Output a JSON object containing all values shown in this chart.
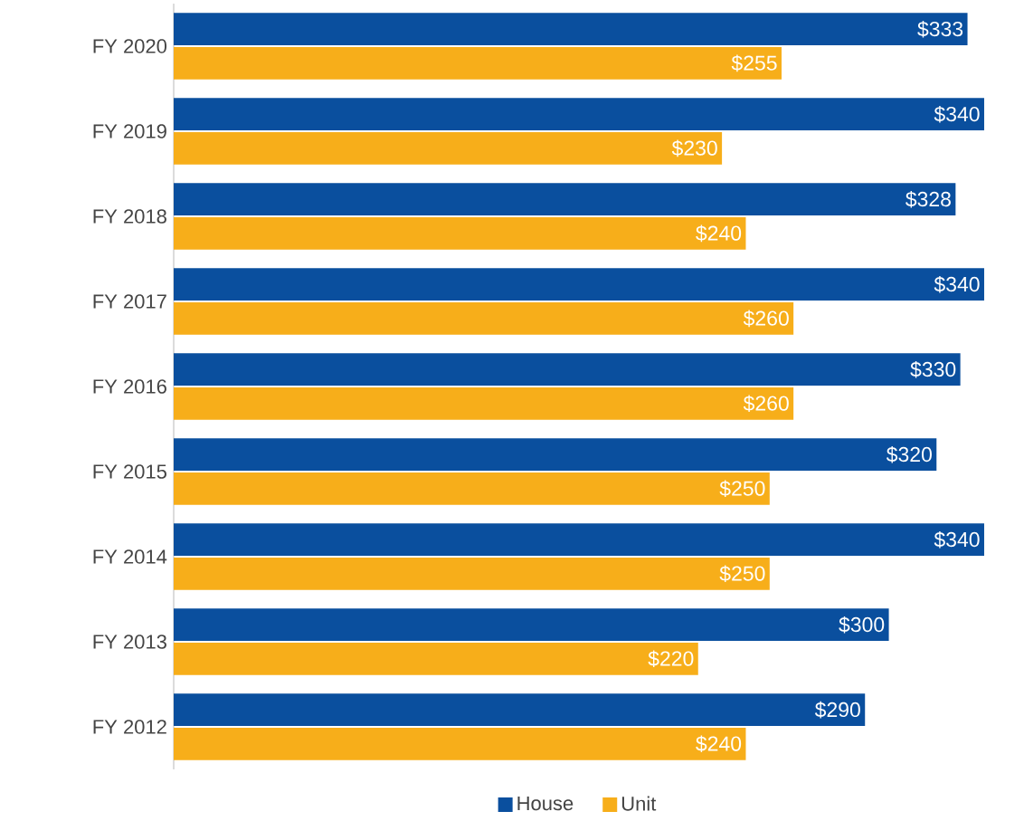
{
  "chart_data": {
    "type": "bar",
    "orientation": "horizontal",
    "categories": [
      "FY 2020",
      "FY 2019",
      "FY 2018",
      "FY 2017",
      "FY 2016",
      "FY 2015",
      "FY 2014",
      "FY 2013",
      "FY 2012"
    ],
    "series": [
      {
        "name": "House",
        "color": "#0a4f9e",
        "values": [
          333,
          340,
          328,
          340,
          330,
          320,
          340,
          300,
          290
        ],
        "value_labels": [
          "$333",
          "$340",
          "$328",
          "$340",
          "$330",
          "$320",
          "$340",
          "$300",
          "$290"
        ]
      },
      {
        "name": "Unit",
        "color": "#f7ae1a",
        "values": [
          255,
          230,
          240,
          260,
          260,
          250,
          250,
          220,
          240
        ],
        "value_labels": [
          "$255",
          "$230",
          "$240",
          "$260",
          "$260",
          "$250",
          "$250",
          "$220",
          "$240"
        ]
      }
    ],
    "tick_labels": "y",
    "legend": "bottom"
  }
}
